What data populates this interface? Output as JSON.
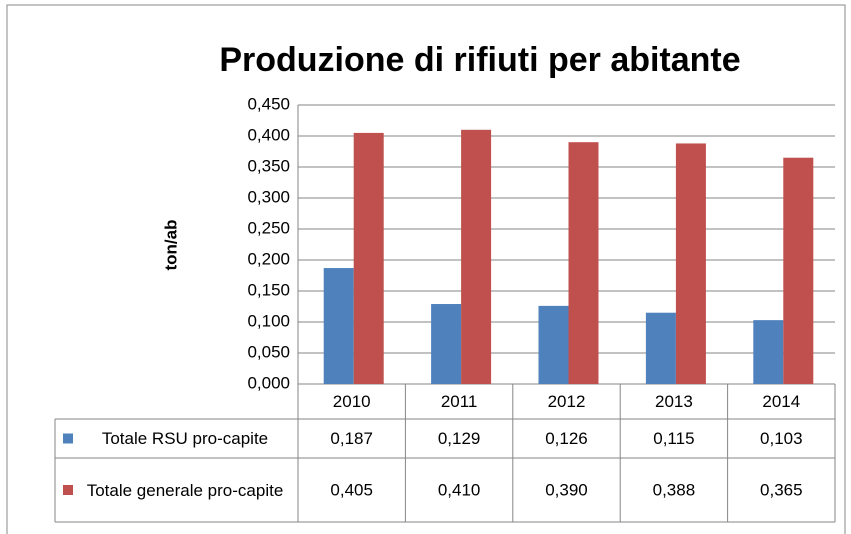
{
  "chart_data": {
    "type": "bar",
    "title": "Produzione di rifiuti per abitante",
    "y_label": "ton/ab",
    "categories": [
      "2010",
      "2011",
      "2012",
      "2013",
      "2014"
    ],
    "series": [
      {
        "name": "Totale RSU pro-capite",
        "color": "#4f81bd",
        "values": [
          0.187,
          0.129,
          0.126,
          0.115,
          0.103
        ],
        "value_labels": [
          "0,187",
          "0,129",
          "0,126",
          "0,115",
          "0,103"
        ]
      },
      {
        "name": "Totale generale pro-capite",
        "color": "#c0504d",
        "values": [
          0.405,
          0.41,
          0.39,
          0.388,
          0.365
        ],
        "value_labels": [
          "0,405",
          "0,410",
          "0,390",
          "0,388",
          "0,365"
        ]
      }
    ],
    "ylim": [
      0,
      0.45
    ],
    "yticks": [
      {
        "value": 0,
        "label": "0,000"
      },
      {
        "value": 0.05,
        "label": "0,050"
      },
      {
        "value": 0.1,
        "label": "0,100"
      },
      {
        "value": 0.15,
        "label": "0,150"
      },
      {
        "value": 0.2,
        "label": "0,200"
      },
      {
        "value": 0.25,
        "label": "0,250"
      },
      {
        "value": 0.3,
        "label": "0,300"
      },
      {
        "value": 0.35,
        "label": "0,350"
      },
      {
        "value": 0.4,
        "label": "0,400"
      },
      {
        "value": 0.45,
        "label": "0,450"
      }
    ],
    "grid": true
  }
}
